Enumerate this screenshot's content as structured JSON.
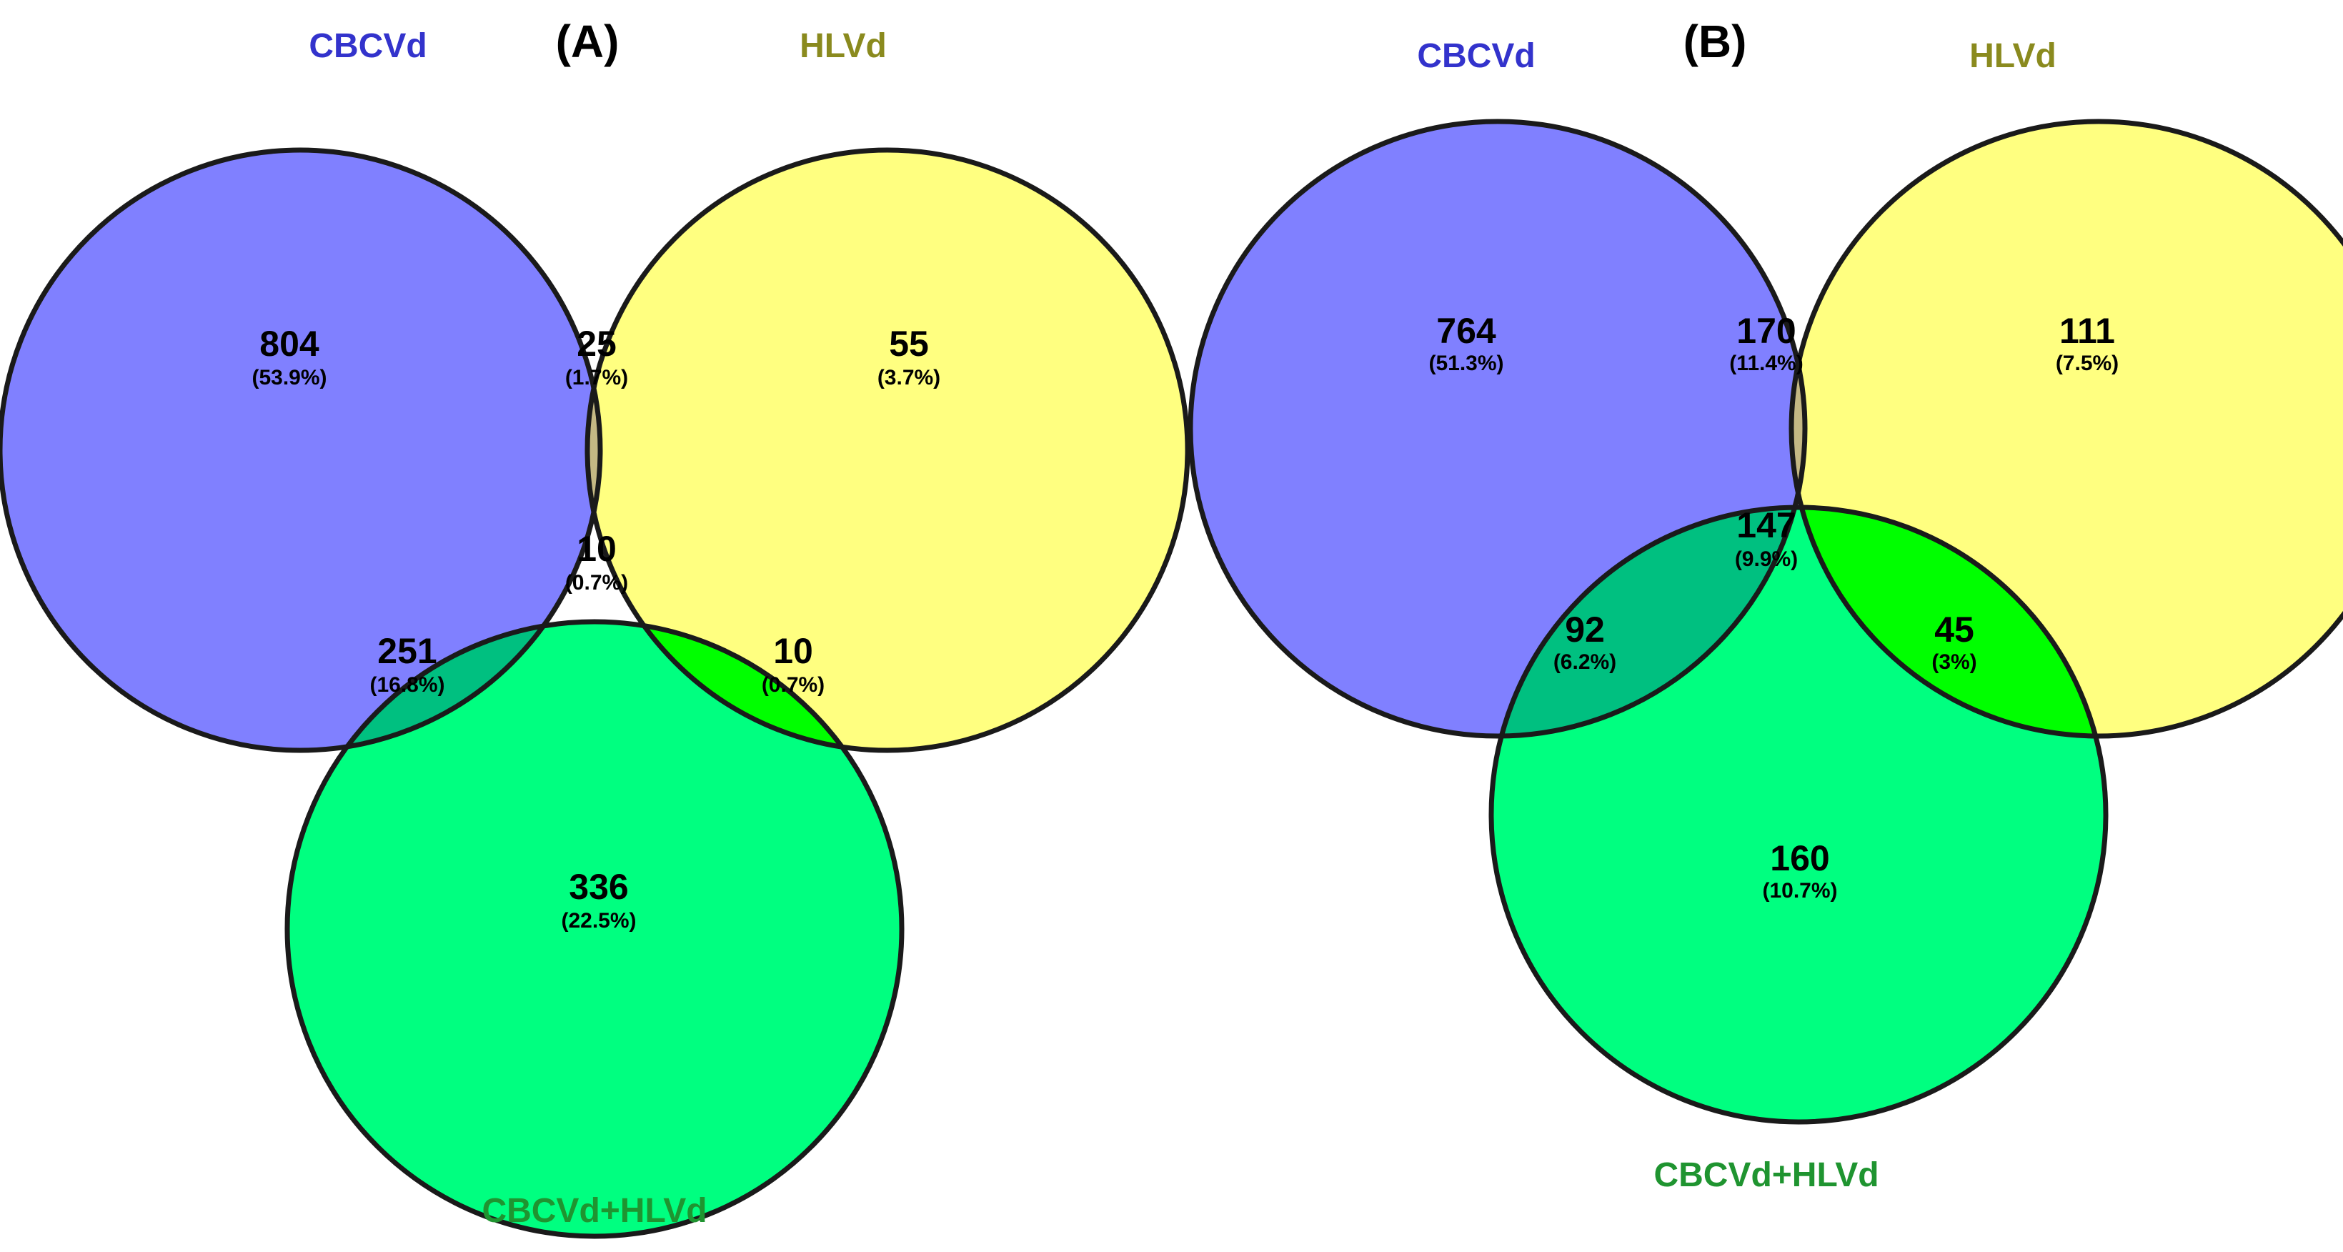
{
  "set_colors": {
    "a": "#8080ff",
    "b": "#ffff80",
    "c": "#00ff80",
    "ab": "#c4b884",
    "ac": "#00c080",
    "bc": "#00ff00",
    "abc": "#00d040"
  },
  "label_colors": {
    "cbcvd": "#3333cc",
    "hlvd": "#8a8a1e",
    "combo": "#1f9430"
  },
  "panels": [
    {
      "title": "(A)",
      "sets": {
        "a": "CBCVd",
        "b": "HLVd",
        "c": "CBCVd+HLVd"
      },
      "regions": {
        "a_only": {
          "count": "804",
          "pct": "(53.9%)"
        },
        "ab": {
          "count": "25",
          "pct": "(1.7%)"
        },
        "b_only": {
          "count": "55",
          "pct": "(3.7%)"
        },
        "abc": {
          "count": "10",
          "pct": "(0.7%)"
        },
        "ac": {
          "count": "251",
          "pct": "(16.8%)"
        },
        "bc": {
          "count": "10",
          "pct": "(0.7%)"
        },
        "c_only": {
          "count": "336",
          "pct": "(22.5%)"
        }
      }
    },
    {
      "title": "(B)",
      "sets": {
        "a": "CBCVd",
        "b": "HLVd",
        "c": "CBCVd+HLVd"
      },
      "regions": {
        "a_only": {
          "count": "764",
          "pct": "(51.3%)"
        },
        "ab": {
          "count": "170",
          "pct": "(11.4%)"
        },
        "b_only": {
          "count": "111",
          "pct": "(7.5%)"
        },
        "abc": {
          "count": "147",
          "pct": "(9.9%)"
        },
        "ac": {
          "count": "92",
          "pct": "(6.2%)"
        },
        "bc": {
          "count": "45",
          "pct": "(3%)"
        },
        "c_only": {
          "count": "160",
          "pct": "(10.7%)"
        }
      }
    }
  ]
}
